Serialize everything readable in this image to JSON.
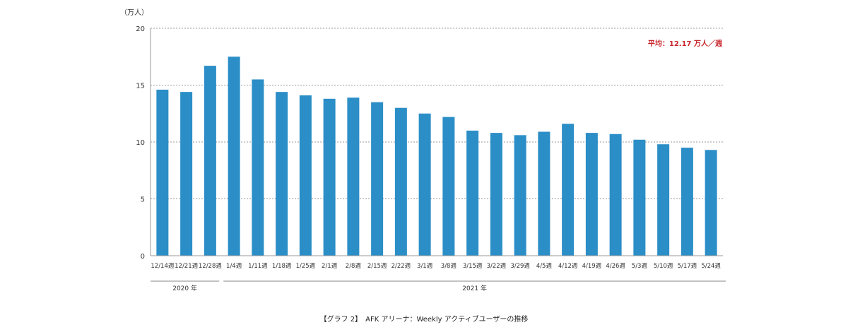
{
  "chart_data": {
    "type": "bar",
    "y_unit": "（万人）",
    "ylim": [
      0,
      20
    ],
    "yticks": [
      0,
      5,
      10,
      15,
      20
    ],
    "grid": true,
    "bar_color": "#2b8ec7",
    "categories": [
      "12/14週",
      "12/21週",
      "12/28週",
      "1/4週",
      "1/11週",
      "1/18週",
      "1/25週",
      "2/1週",
      "2/8週",
      "2/15週",
      "2/22週",
      "3/1週",
      "3/8週",
      "3/15週",
      "3/22週",
      "3/29週",
      "4/5週",
      "4/12週",
      "4/19週",
      "4/26週",
      "5/3週",
      "5/10週",
      "5/17週",
      "5/24週"
    ],
    "values": [
      14.6,
      14.4,
      16.7,
      17.5,
      15.5,
      14.4,
      14.1,
      13.8,
      13.9,
      13.5,
      13.0,
      12.5,
      12.2,
      11.0,
      10.8,
      10.6,
      10.9,
      11.6,
      10.8,
      10.7,
      10.2,
      9.8,
      9.5,
      9.3
    ],
    "average_label": "平均：12.17 万人／週",
    "year_groups": [
      {
        "label": "2020 年",
        "start": 0,
        "end": 2
      },
      {
        "label": "2021 年",
        "start": 3,
        "end": 23
      }
    ],
    "caption": "【グラフ 2】　AFK アリーナ：Weekly アクティブユーザーの推移"
  }
}
